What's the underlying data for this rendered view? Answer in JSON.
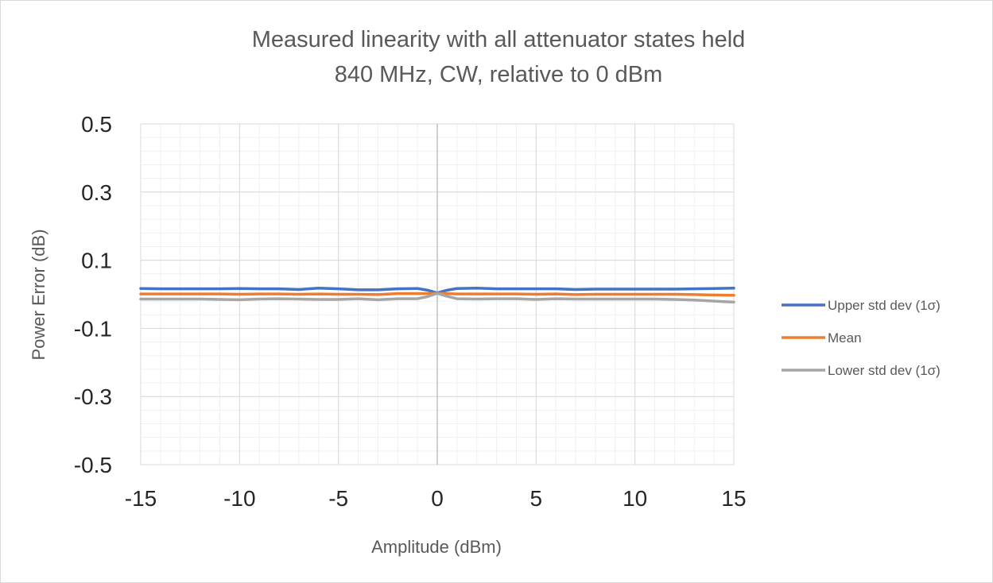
{
  "chart_data": {
    "type": "line",
    "title": "Measured linearity with all attenuator states held",
    "subtitle": "840 MHz, CW, relative to 0 dBm",
    "xlabel": "Amplitude (dBm)",
    "ylabel": "Power Error (dB)",
    "xlim": [
      -15,
      15
    ],
    "ylim": [
      -0.5,
      0.5
    ],
    "x_ticks": [
      -15,
      -10,
      -5,
      0,
      5,
      10,
      15
    ],
    "y_ticks": [
      0.5,
      0.3,
      0.1,
      -0.1,
      -0.3,
      -0.5
    ],
    "x_tick_labels": [
      "-15",
      "-10",
      "-5",
      "0",
      "5",
      "10",
      "15"
    ],
    "y_tick_labels": [
      "0.5",
      "0.3",
      "0.1",
      "-0.1",
      "-0.3",
      "-0.5"
    ],
    "grid": {
      "major": true,
      "minor": true
    },
    "legend_position": "right",
    "x": [
      -15,
      -14,
      -13,
      -12,
      -11,
      -10,
      -9,
      -8,
      -7,
      -6,
      -5,
      -4,
      -3,
      -2,
      -1,
      -0.5,
      0,
      0.5,
      1,
      2,
      3,
      4,
      5,
      6,
      7,
      8,
      9,
      10,
      11,
      12,
      13,
      14,
      15
    ],
    "series": [
      {
        "name": "Upper std dev (1σ)",
        "color": "#4472c4",
        "values": [
          0.017,
          0.016,
          0.016,
          0.016,
          0.016,
          0.017,
          0.016,
          0.016,
          0.014,
          0.018,
          0.016,
          0.013,
          0.013,
          0.016,
          0.017,
          0.012,
          0.004,
          0.012,
          0.017,
          0.018,
          0.016,
          0.016,
          0.016,
          0.016,
          0.014,
          0.015,
          0.015,
          0.015,
          0.015,
          0.015,
          0.016,
          0.017,
          0.018
        ]
      },
      {
        "name": "Mean",
        "color": "#ed7d31",
        "values": [
          0.001,
          0.001,
          0.001,
          0.001,
          0.001,
          0.0,
          0.001,
          0.001,
          0.0,
          0.001,
          0.0,
          0.0,
          -0.001,
          0.002,
          0.002,
          0.002,
          0.003,
          0.002,
          0.001,
          0.001,
          0.001,
          0.001,
          0.0,
          0.001,
          -0.001,
          0.0,
          0.0,
          0.0,
          0.0,
          0.0,
          -0.001,
          -0.002,
          -0.003
        ]
      },
      {
        "name": "Lower std dev (1σ)",
        "color": "#a5a5a5",
        "values": [
          -0.014,
          -0.014,
          -0.014,
          -0.014,
          -0.015,
          -0.016,
          -0.014,
          -0.013,
          -0.014,
          -0.015,
          -0.015,
          -0.013,
          -0.016,
          -0.013,
          -0.013,
          -0.007,
          0.003,
          -0.006,
          -0.013,
          -0.014,
          -0.013,
          -0.013,
          -0.015,
          -0.013,
          -0.014,
          -0.014,
          -0.014,
          -0.014,
          -0.014,
          -0.015,
          -0.017,
          -0.02,
          -0.023
        ]
      }
    ]
  }
}
